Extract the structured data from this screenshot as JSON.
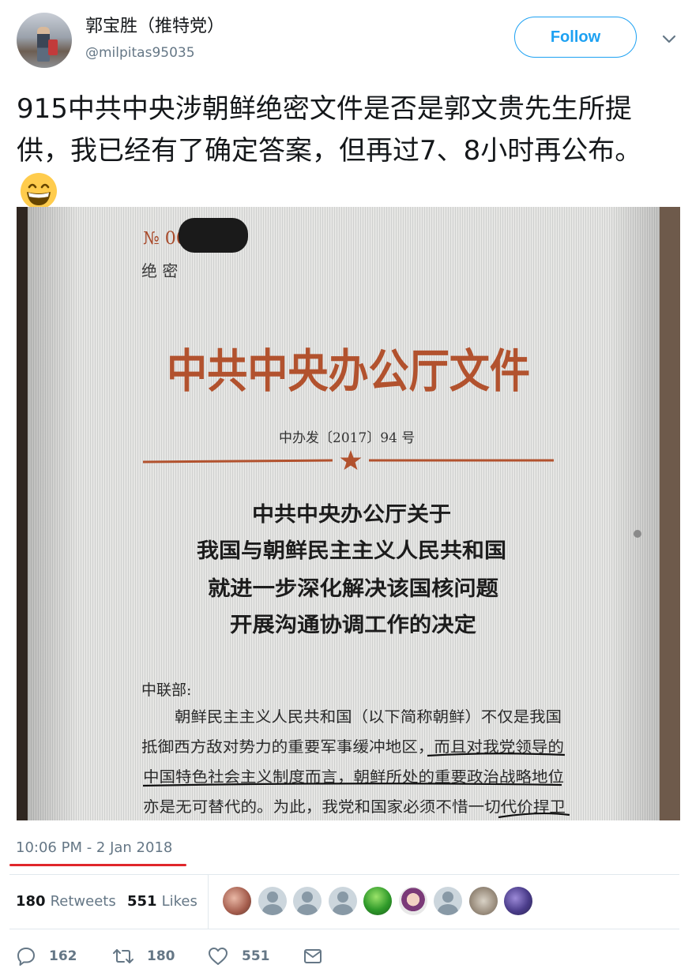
{
  "author": {
    "display_name": "郭宝胜（推特党）",
    "handle": "@milpitas95035"
  },
  "follow_label": "Follow",
  "tweet": {
    "text": "915中共中央涉朝鲜绝密文件是否是郭文贵先生所提供，我已经有了确定答案，但再过7、8小时再公布。",
    "emoji": "grinning-face-emoji"
  },
  "photo": {
    "no_label": "№ 00",
    "secret_mark": "绝  密",
    "header": "中共中央办公厅文件",
    "doc_number": "中办发〔2017〕94 号",
    "title_lines": [
      "中共中央办公厅关于",
      "我国与朝鲜民主主义人民共和国",
      "就进一步深化解决该国核问题",
      "开展沟通协调工作的决定"
    ],
    "addressee": "中联部:",
    "body_lines": [
      "朝鲜民主主义人民共和国（以下简称朝鲜）不仅是我国",
      "抵御西方敌对势力的重要军事缓冲地区，而且对我党领导的",
      "中国特色社会主义制度而言，朝鲜所处的重要政治战略地位",
      "亦是无可替代的。为此，我党和国家必须不惜一切代价捍卫"
    ]
  },
  "timestamp": "10:06 PM - 2 Jan 2018",
  "stats": {
    "retweets_count": "180",
    "retweets_label": "Retweets",
    "likes_count": "551",
    "likes_label": "Likes"
  },
  "likers": [
    "photo",
    "default",
    "default",
    "default",
    "green",
    "cartoon",
    "default",
    "dog",
    "purple"
  ],
  "actions": {
    "reply_count": "162",
    "retweet_count": "180",
    "like_count": "551"
  },
  "colors": {
    "accent": "#1da1f2",
    "muted": "#657786",
    "underline": "#e0262b",
    "document_red": "#b2522e"
  }
}
